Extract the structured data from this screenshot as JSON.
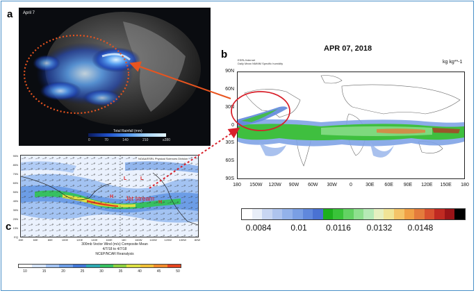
{
  "panel_a": {
    "letter": "a",
    "date_label": "April 7",
    "colorbar_title": "Total Rainfall (mm)",
    "colorbar_ticks": [
      "0",
      "70",
      "140",
      "210",
      "≥280"
    ]
  },
  "panel_b": {
    "letter": "b",
    "title": "APR 07, 2018",
    "unit": "kg kg**-1",
    "subtitle_lines": [
      "ESRL/Internet",
      "Daily Mean NMMM Specific humidity"
    ],
    "lat_labels": [
      "90N",
      "60N",
      "30N",
      "0",
      "30S",
      "60S",
      "90S"
    ],
    "lon_labels": [
      "180",
      "150W",
      "120W",
      "90W",
      "60W",
      "30W",
      "0",
      "30E",
      "60E",
      "90E",
      "120E",
      "150E",
      "180"
    ],
    "colorbar_labels": [
      "0.0084",
      "0.01",
      "0.0116",
      "0.0132",
      "0.0148"
    ],
    "colorbar_colors": [
      "#ffffff",
      "#e8eef8",
      "#c8d6f2",
      "#aec4ee",
      "#93b2ea",
      "#7a9fe4",
      "#6088dc",
      "#4a72d2",
      "#1db01d",
      "#39c339",
      "#63d263",
      "#8ee08e",
      "#b6eab6",
      "#e6f0c0",
      "#f0e496",
      "#f4c468",
      "#f0a046",
      "#e47c3c",
      "#d8512f",
      "#c02a22",
      "#9a1418",
      "#000000"
    ]
  },
  "panel_c": {
    "letter": "c",
    "credit": "NOAA/ESRL Physical Sciences Division",
    "caption_lines": [
      "300mb Vector Wind (m/s) Composite Mean",
      "4/7/18 to 4/7/18",
      "NCEP/NCAR Reanalysis"
    ],
    "lat_labels": [
      "90N",
      "80N",
      "70N",
      "60N",
      "50N",
      "40N",
      "30N",
      "20N",
      "10N",
      "EQ"
    ],
    "lon_labels": [
      "40E",
      "60E",
      "80E",
      "100E",
      "120E",
      "140E",
      "160E",
      "180",
      "160W",
      "140W",
      "120W",
      "100W",
      "80W"
    ],
    "annotations": {
      "jet": "Jet stream",
      "high": "H",
      "low": "L"
    },
    "colorbar_labels": [
      "10",
      "15",
      "20",
      "25",
      "30",
      "35",
      "40",
      "45",
      "50"
    ],
    "colorbar_colors": [
      "#ffffff",
      "#d6e4f8",
      "#a3c3f2",
      "#6c9de6",
      "#3f76d6",
      "#2ca8b0",
      "#36c060",
      "#8cd040",
      "#dce044",
      "#f0c038",
      "#f08a2c",
      "#e4441e"
    ]
  }
}
